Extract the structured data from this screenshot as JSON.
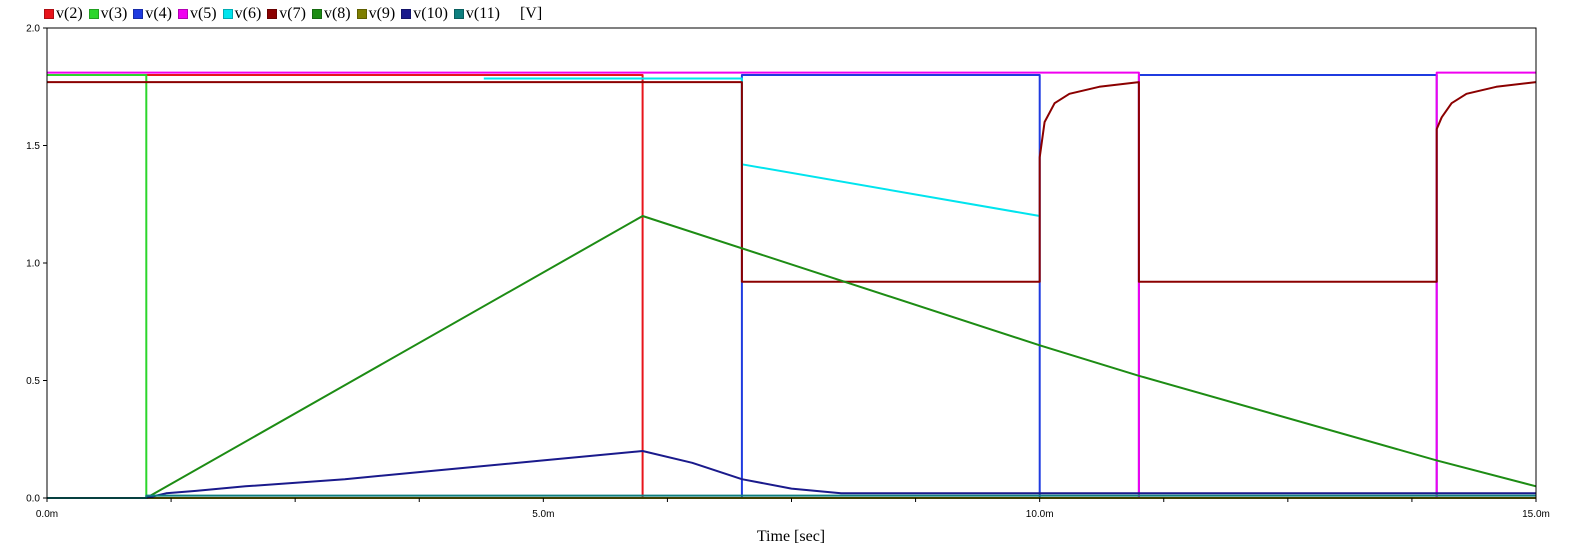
{
  "chart_data": {
    "type": "line",
    "title": "",
    "xlabel": "Time [sec]",
    "ylabel": "",
    "unit_label": "[V]",
    "xlim": [
      0,
      15
    ],
    "ylim": [
      0,
      2.0
    ],
    "x_ticks": [
      0,
      5,
      10,
      15
    ],
    "x_tick_labels": [
      "0.0m",
      "5.0m",
      "10.0m",
      "15.0m"
    ],
    "y_ticks": [
      0,
      0.5,
      1.0,
      1.5,
      2.0
    ],
    "y_tick_labels": [
      "0.0",
      "0.5",
      "1.0",
      "1.5",
      "2.0"
    ],
    "legend_position": "top-left",
    "grid": false,
    "series": [
      {
        "name": "v(2)",
        "color": "#e8141b",
        "points": [
          [
            0,
            1.8
          ],
          [
            6.0,
            1.8
          ],
          [
            6.0,
            0
          ],
          [
            15,
            0
          ]
        ]
      },
      {
        "name": "v(3)",
        "color": "#2bd62b",
        "points": [
          [
            0,
            1.8
          ],
          [
            1.0,
            1.8
          ],
          [
            1.0,
            0
          ],
          [
            15,
            0
          ]
        ]
      },
      {
        "name": "v(4)",
        "color": "#1f3be0",
        "points": [
          [
            0,
            0
          ],
          [
            7.0,
            0
          ],
          [
            7.0,
            1.8
          ],
          [
            10.0,
            1.8
          ],
          [
            10.0,
            0
          ],
          [
            11.0,
            0
          ],
          [
            11.0,
            1.8
          ],
          [
            14.0,
            1.8
          ],
          [
            14.0,
            0
          ],
          [
            15,
            0
          ]
        ]
      },
      {
        "name": "v(5)",
        "color": "#f000f0",
        "points": [
          [
            0,
            1.81
          ],
          [
            11.0,
            1.81
          ],
          [
            11.0,
            0
          ],
          [
            14.0,
            0
          ],
          [
            14.0,
            1.81
          ],
          [
            15,
            1.81
          ]
        ]
      },
      {
        "name": "v(6)",
        "color": "#00e4ee",
        "points": [
          [
            4.4,
            1.785
          ],
          [
            7.0,
            1.785
          ],
          [
            7.0,
            1.42
          ],
          [
            10.0,
            1.2
          ]
        ]
      },
      {
        "name": "v(7)",
        "color": "#8b0000",
        "points": [
          [
            0,
            1.77
          ],
          [
            7.0,
            1.77
          ],
          [
            7.0,
            0.92
          ],
          [
            10.0,
            0.92
          ],
          [
            10.0,
            1.45
          ],
          [
            10.05,
            1.6
          ],
          [
            10.15,
            1.68
          ],
          [
            10.3,
            1.72
          ],
          [
            10.6,
            1.75
          ],
          [
            11.0,
            1.77
          ],
          [
            11.0,
            1.26
          ],
          [
            11.0,
            0.92
          ],
          [
            14.0,
            0.92
          ],
          [
            14.0,
            1.57
          ],
          [
            14.05,
            1.62
          ],
          [
            14.15,
            1.68
          ],
          [
            14.3,
            1.72
          ],
          [
            14.6,
            1.75
          ],
          [
            15,
            1.77
          ]
        ]
      },
      {
        "name": "v(8)",
        "color": "#1d8c14",
        "points": [
          [
            1.0,
            0
          ],
          [
            6.0,
            1.2
          ],
          [
            10.0,
            0.65
          ],
          [
            11.0,
            0.52
          ],
          [
            14.0,
            0.16
          ],
          [
            15,
            0.05
          ]
        ]
      },
      {
        "name": "v(9)",
        "color": "#7f7f00",
        "points": [
          [
            0,
            0
          ],
          [
            15,
            0
          ]
        ]
      },
      {
        "name": "v(10)",
        "color": "#1a1a8c",
        "points": [
          [
            1.0,
            0
          ],
          [
            1.2,
            0.02
          ],
          [
            1.5,
            0.03
          ],
          [
            2.0,
            0.05
          ],
          [
            3.0,
            0.08
          ],
          [
            4.0,
            0.12
          ],
          [
            5.0,
            0.16
          ],
          [
            6.0,
            0.2
          ],
          [
            6.5,
            0.15
          ],
          [
            7.0,
            0.08
          ],
          [
            7.5,
            0.04
          ],
          [
            8.0,
            0.02
          ],
          [
            15,
            0.02
          ]
        ]
      },
      {
        "name": "v(11)",
        "color": "#0e7f7f",
        "points": [
          [
            0,
            0
          ],
          [
            1.0,
            0
          ],
          [
            1.0,
            0.01
          ],
          [
            15,
            0.01
          ]
        ]
      }
    ]
  }
}
